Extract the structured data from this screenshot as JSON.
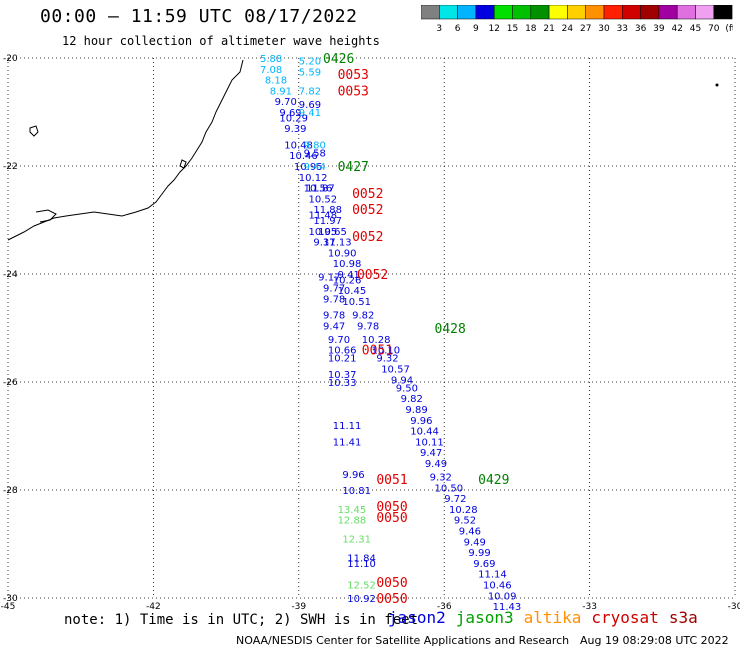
{
  "title": "00:00 – 11:59 UTC 08/17/2022",
  "subtitle": "12 hour collection of altimeter wave heights",
  "legend": {
    "colors": [
      "#808080",
      "#00e5e5",
      "#00b4ff",
      "#0000e0",
      "#00e000",
      "#00c000",
      "#009000",
      "#ffff00",
      "#ffd000",
      "#ff9000",
      "#ff2000",
      "#d00000",
      "#a00000",
      "#a000a0",
      "#e070e0",
      "#f0a0f0",
      "#000000"
    ],
    "labels": [
      "3",
      "6",
      "9",
      "12",
      "15",
      "18",
      "21",
      "24",
      "27",
      "30",
      "33",
      "36",
      "39",
      "42",
      "45",
      "70",
      "(ft)"
    ]
  },
  "axes": {
    "lat_range": [
      -30,
      -20
    ],
    "lon_range": [
      -45,
      -30
    ],
    "lat_ticks": [
      "-20",
      "-22",
      "-24",
      "-26",
      "-28",
      "-30"
    ],
    "lon_ticks": [
      "-45",
      "-42",
      "-39",
      "-36",
      "-33",
      "-30"
    ]
  },
  "times": {
    "green": [
      {
        "t": "0426",
        "lon": -38.5,
        "lat": -20.0
      },
      {
        "t": "0427",
        "lon": -38.2,
        "lat": -22.0
      },
      {
        "t": "0428",
        "lon": -36.2,
        "lat": -25.0
      },
      {
        "t": "0429",
        "lon": -35.3,
        "lat": -27.8
      }
    ],
    "red": [
      {
        "t": "0053",
        "lon": -38.2,
        "lat": -20.3
      },
      {
        "t": "0053",
        "lon": -38.2,
        "lat": -20.6
      },
      {
        "t": "0052",
        "lon": -37.9,
        "lat": -22.5
      },
      {
        "t": "0052",
        "lon": -37.9,
        "lat": -22.8
      },
      {
        "t": "0052",
        "lon": -37.9,
        "lat": -23.3
      },
      {
        "t": "0052",
        "lon": -37.8,
        "lat": -24.0
      },
      {
        "t": "0051",
        "lon": -37.7,
        "lat": -25.4
      },
      {
        "t": "0051",
        "lon": -37.4,
        "lat": -27.8
      },
      {
        "t": "0050",
        "lon": -37.4,
        "lat": -28.3
      },
      {
        "t": "0050",
        "lon": -37.4,
        "lat": -28.5
      },
      {
        "t": "0050",
        "lon": -37.4,
        "lat": -29.7
      },
      {
        "t": "0050",
        "lon": -37.4,
        "lat": -30.0
      }
    ]
  },
  "swh_points": [
    {
      "v": "5.88",
      "lon": -39.8,
      "lat": -20.0,
      "c": "#00b4ff"
    },
    {
      "v": "7.08",
      "lon": -39.8,
      "lat": -20.2,
      "c": "#00b4ff"
    },
    {
      "v": "8.18",
      "lon": -39.7,
      "lat": -20.4,
      "c": "#00b4ff"
    },
    {
      "v": "8.91",
      "lon": -39.6,
      "lat": -20.6,
      "c": "#00b4ff"
    },
    {
      "v": "5.20",
      "lon": -39.0,
      "lat": -20.05,
      "c": "#00b4ff"
    },
    {
      "v": "5.59",
      "lon": -39.0,
      "lat": -20.25,
      "c": "#00b4ff"
    },
    {
      "v": "7.82",
      "lon": -39.0,
      "lat": -20.6,
      "c": "#00b4ff"
    },
    {
      "v": "9.70",
      "lon": -39.5,
      "lat": -20.8,
      "c": "#0000e0"
    },
    {
      "v": "9.69",
      "lon": -39.0,
      "lat": -20.85,
      "c": "#0000e0"
    },
    {
      "v": "9.69",
      "lon": -39.4,
      "lat": -21.0,
      "c": "#0000e0"
    },
    {
      "v": "9.41",
      "lon": -39.0,
      "lat": -21.0,
      "c": "#00b4ff"
    },
    {
      "v": "10.29",
      "lon": -39.4,
      "lat": -21.1,
      "c": "#0000e0"
    },
    {
      "v": "9.39",
      "lon": -39.3,
      "lat": -21.3,
      "c": "#0000e0"
    },
    {
      "v": "10.48",
      "lon": -39.3,
      "lat": -21.6,
      "c": "#0000e0"
    },
    {
      "v": "9.80",
      "lon": -38.9,
      "lat": -21.6,
      "c": "#00b4ff"
    },
    {
      "v": "10.46",
      "lon": -39.2,
      "lat": -21.8,
      "c": "#0000e0"
    },
    {
      "v": "9.58",
      "lon": -38.9,
      "lat": -21.75,
      "c": "#0000e0"
    },
    {
      "v": "10.95",
      "lon": -39.1,
      "lat": -22.0,
      "c": "#0000e0"
    },
    {
      "v": "9.44",
      "lon": -38.9,
      "lat": -22.0,
      "c": "#00b4ff"
    },
    {
      "v": "10.12",
      "lon": -39.0,
      "lat": -22.2,
      "c": "#0000e0"
    },
    {
      "v": "10.56",
      "lon": -38.9,
      "lat": -22.4,
      "c": "#0000e0"
    },
    {
      "v": "11.87",
      "lon": -38.85,
      "lat": -22.4,
      "c": "#0000e0"
    },
    {
      "v": "10.52",
      "lon": -38.8,
      "lat": -22.6,
      "c": "#0000e0"
    },
    {
      "v": "11.88",
      "lon": -38.7,
      "lat": -22.8,
      "c": "#0000e0"
    },
    {
      "v": "11.48",
      "lon": -38.8,
      "lat": -22.9,
      "c": "#0000e0"
    },
    {
      "v": "11.97",
      "lon": -38.7,
      "lat": -23.0,
      "c": "#0000e0"
    },
    {
      "v": "10.95",
      "lon": -38.8,
      "lat": -23.2,
      "c": "#0000e0"
    },
    {
      "v": "10.65",
      "lon": -38.6,
      "lat": -23.2,
      "c": "#0000e0"
    },
    {
      "v": "9.37",
      "lon": -38.7,
      "lat": -23.4,
      "c": "#0000e0"
    },
    {
      "v": "11.13",
      "lon": -38.5,
      "lat": -23.4,
      "c": "#0000e0"
    },
    {
      "v": "10.90",
      "lon": -38.4,
      "lat": -23.6,
      "c": "#0000e0"
    },
    {
      "v": "10.98",
      "lon": -38.3,
      "lat": -23.8,
      "c": "#0000e0"
    },
    {
      "v": "9.41",
      "lon": -38.2,
      "lat": -24.0,
      "c": "#0000e0"
    },
    {
      "v": "9.17",
      "lon": -38.6,
      "lat": -24.05,
      "c": "#0000e0"
    },
    {
      "v": "10.26",
      "lon": -38.3,
      "lat": -24.1,
      "c": "#0000e0"
    },
    {
      "v": "9.77",
      "lon": -38.5,
      "lat": -24.25,
      "c": "#0000e0"
    },
    {
      "v": "10.45",
      "lon": -38.2,
      "lat": -24.3,
      "c": "#0000e0"
    },
    {
      "v": "9.78",
      "lon": -38.5,
      "lat": -24.45,
      "c": "#0000e0"
    },
    {
      "v": "10.51",
      "lon": -38.1,
      "lat": -24.5,
      "c": "#0000e0"
    },
    {
      "v": "9.78",
      "lon": -38.5,
      "lat": -24.75,
      "c": "#0000e0"
    },
    {
      "v": "9.82",
      "lon": -37.9,
      "lat": -24.75,
      "c": "#0000e0"
    },
    {
      "v": "9.47",
      "lon": -38.5,
      "lat": -24.95,
      "c": "#0000e0"
    },
    {
      "v": "9.78",
      "lon": -37.8,
      "lat": -24.95,
      "c": "#0000e0"
    },
    {
      "v": "9.70",
      "lon": -38.4,
      "lat": -25.2,
      "c": "#0000e0"
    },
    {
      "v": "10.28",
      "lon": -37.7,
      "lat": -25.2,
      "c": "#0000e0"
    },
    {
      "v": "10.66",
      "lon": -38.4,
      "lat": -25.4,
      "c": "#0000e0"
    },
    {
      "v": "10.10",
      "lon": -37.5,
      "lat": -25.4,
      "c": "#0000e0"
    },
    {
      "v": "10.21",
      "lon": -38.4,
      "lat": -25.55,
      "c": "#0000e0"
    },
    {
      "v": "9.32",
      "lon": -37.4,
      "lat": -25.55,
      "c": "#0000e0"
    },
    {
      "v": "10.57",
      "lon": -37.3,
      "lat": -25.75,
      "c": "#0000e0"
    },
    {
      "v": "10.37",
      "lon": -38.4,
      "lat": -25.85,
      "c": "#0000e0"
    },
    {
      "v": "9.94",
      "lon": -37.1,
      "lat": -25.95,
      "c": "#0000e0"
    },
    {
      "v": "10.33",
      "lon": -38.4,
      "lat": -26.0,
      "c": "#0000e0"
    },
    {
      "v": "9.50",
      "lon": -37.0,
      "lat": -26.1,
      "c": "#0000e0"
    },
    {
      "v": "9.82",
      "lon": -36.9,
      "lat": -26.3,
      "c": "#0000e0"
    },
    {
      "v": "9.89",
      "lon": -36.8,
      "lat": -26.5,
      "c": "#0000e0"
    },
    {
      "v": "9.96",
      "lon": -36.7,
      "lat": -26.7,
      "c": "#0000e0"
    },
    {
      "v": "11.11",
      "lon": -38.3,
      "lat": -26.8,
      "c": "#0000e0"
    },
    {
      "v": "10.44",
      "lon": -36.7,
      "lat": -26.9,
      "c": "#0000e0"
    },
    {
      "v": "10.11",
      "lon": -36.6,
      "lat": -27.1,
      "c": "#0000e0"
    },
    {
      "v": "11.41",
      "lon": -38.3,
      "lat": -27.1,
      "c": "#0000e0"
    },
    {
      "v": "9.47",
      "lon": -36.5,
      "lat": -27.3,
      "c": "#0000e0"
    },
    {
      "v": "9.49",
      "lon": -36.4,
      "lat": -27.5,
      "c": "#0000e0"
    },
    {
      "v": "9.96",
      "lon": -38.1,
      "lat": -27.7,
      "c": "#0000e0"
    },
    {
      "v": "9.32",
      "lon": -36.3,
      "lat": -27.75,
      "c": "#0000e0"
    },
    {
      "v": "10.50",
      "lon": -36.2,
      "lat": -27.95,
      "c": "#0000e0"
    },
    {
      "v": "10.81",
      "lon": -38.1,
      "lat": -28.0,
      "c": "#0000e0"
    },
    {
      "v": "9.72",
      "lon": -36.0,
      "lat": -28.15,
      "c": "#0000e0"
    },
    {
      "v": "10.28",
      "lon": -35.9,
      "lat": -28.35,
      "c": "#0000e0"
    },
    {
      "v": "13.45",
      "lon": -38.2,
      "lat": -28.35,
      "c": "#66dd66"
    },
    {
      "v": "9.52",
      "lon": -35.8,
      "lat": -28.55,
      "c": "#0000e0"
    },
    {
      "v": "12.88",
      "lon": -38.2,
      "lat": -28.55,
      "c": "#66dd66"
    },
    {
      "v": "9.46",
      "lon": -35.7,
      "lat": -28.75,
      "c": "#0000e0"
    },
    {
      "v": "12.31",
      "lon": -38.1,
      "lat": -28.9,
      "c": "#66dd66"
    },
    {
      "v": "9.49",
      "lon": -35.6,
      "lat": -28.95,
      "c": "#0000e0"
    },
    {
      "v": "9.99",
      "lon": -35.5,
      "lat": -29.15,
      "c": "#0000e0"
    },
    {
      "v": "11.84",
      "lon": -38.0,
      "lat": -29.25,
      "c": "#0000e0"
    },
    {
      "v": "11.10",
      "lon": -38.0,
      "lat": -29.35,
      "c": "#0000e0"
    },
    {
      "v": "9.69",
      "lon": -35.4,
      "lat": -29.35,
      "c": "#0000e0"
    },
    {
      "v": "11.14",
      "lon": -35.3,
      "lat": -29.55,
      "c": "#0000e0"
    },
    {
      "v": "10.46",
      "lon": -35.2,
      "lat": -29.75,
      "c": "#0000e0"
    },
    {
      "v": "12.52",
      "lon": -38.0,
      "lat": -29.75,
      "c": "#66dd66"
    },
    {
      "v": "10.09",
      "lon": -35.1,
      "lat": -29.95,
      "c": "#0000e0"
    },
    {
      "v": "10.92",
      "lon": -38.0,
      "lat": -30.0,
      "c": "#0000e0"
    },
    {
      "v": "11.43",
      "lon": -35.0,
      "lat": -30.15,
      "c": "#0000e0"
    }
  ],
  "note": "note: 1) Time is in UTC; 2) SWH is in feet",
  "satellites": [
    {
      "name": "jason2",
      "color": "#0000e0"
    },
    {
      "name": "jason3",
      "color": "#00a000"
    },
    {
      "name": "altika",
      "color": "#ff9000"
    },
    {
      "name": "cryosat",
      "color": "#d00000"
    },
    {
      "name": "s3a",
      "color": "#a00000"
    }
  ],
  "credit": "NOAA/NESDIS Center for Satellite Applications and Research",
  "timestamp": "Aug 19 08:29:08 UTC 2022"
}
